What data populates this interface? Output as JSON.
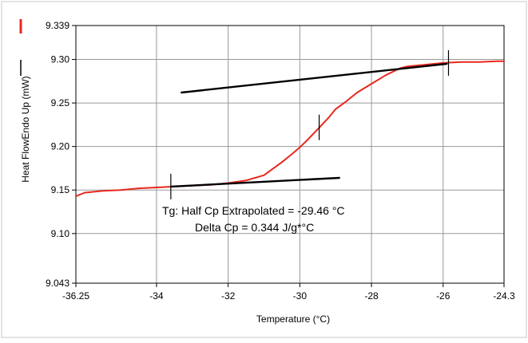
{
  "chart_data": {
    "type": "line",
    "xlabel": "Temperature (°C)",
    "ylabel": "Heat FlowEndo Up (mW)",
    "xlim": [
      -36.25,
      -24.3
    ],
    "ylim": [
      9.043,
      9.339
    ],
    "x_ticks": [
      -36.25,
      -34,
      -32,
      -30,
      -28,
      -26,
      -24.3
    ],
    "x_tick_labels": [
      "-36.25",
      "-34",
      "-32",
      "-30",
      "-28",
      "-26",
      "-24.3"
    ],
    "y_ticks": [
      9.043,
      9.1,
      9.15,
      9.2,
      9.25,
      9.3,
      9.339
    ],
    "y_tick_labels": [
      "9.043",
      "9.10",
      "9.15",
      "9.20",
      "9.25",
      "9.30",
      "9.339"
    ],
    "grid": true,
    "legend_placement": "left",
    "colors": {
      "curve": "#e8281e",
      "tangent": "#000000",
      "grid": "#999999"
    },
    "series": [
      {
        "color": "#e8281e",
        "x": [
          -36.25,
          -36.0,
          -35.5,
          -35.0,
          -34.5,
          -34.0,
          -33.5,
          -33.0,
          -32.5,
          -32.0,
          -31.5,
          -31.0,
          -30.8,
          -30.5,
          -30.2,
          -30.0,
          -29.8,
          -29.5,
          -29.2,
          -29.0,
          -28.7,
          -28.4,
          -28.0,
          -27.6,
          -27.2,
          -27.0,
          -26.5,
          -26.0,
          -25.5,
          -25.0,
          -24.5,
          -24.3
        ],
        "y": [
          9.143,
          9.147,
          9.149,
          9.15,
          9.152,
          9.153,
          9.154,
          9.155,
          9.156,
          9.158,
          9.161,
          9.167,
          9.173,
          9.182,
          9.192,
          9.199,
          9.207,
          9.22,
          9.233,
          9.243,
          9.252,
          9.262,
          9.272,
          9.282,
          9.29,
          9.292,
          9.294,
          9.296,
          9.297,
          9.297,
          9.298,
          9.298
        ]
      },
      {
        "color": "#000000",
        "x": [
          -33.3,
          -25.9
        ],
        "y": [
          9.262,
          9.295
        ]
      },
      {
        "color": "#000000",
        "x": [
          -33.6,
          -28.9
        ],
        "y": [
          9.154,
          9.164
        ]
      }
    ],
    "markers": [
      {
        "x": -33.6,
        "y": 9.154
      },
      {
        "x": -29.46,
        "y": 9.222
      },
      {
        "x": -25.85,
        "y": 9.296
      }
    ],
    "annotations": [
      "Tg: Half Cp Extrapolated = -29.46 °C",
      "Delta Cp = 0.344 J/g*°C"
    ]
  }
}
